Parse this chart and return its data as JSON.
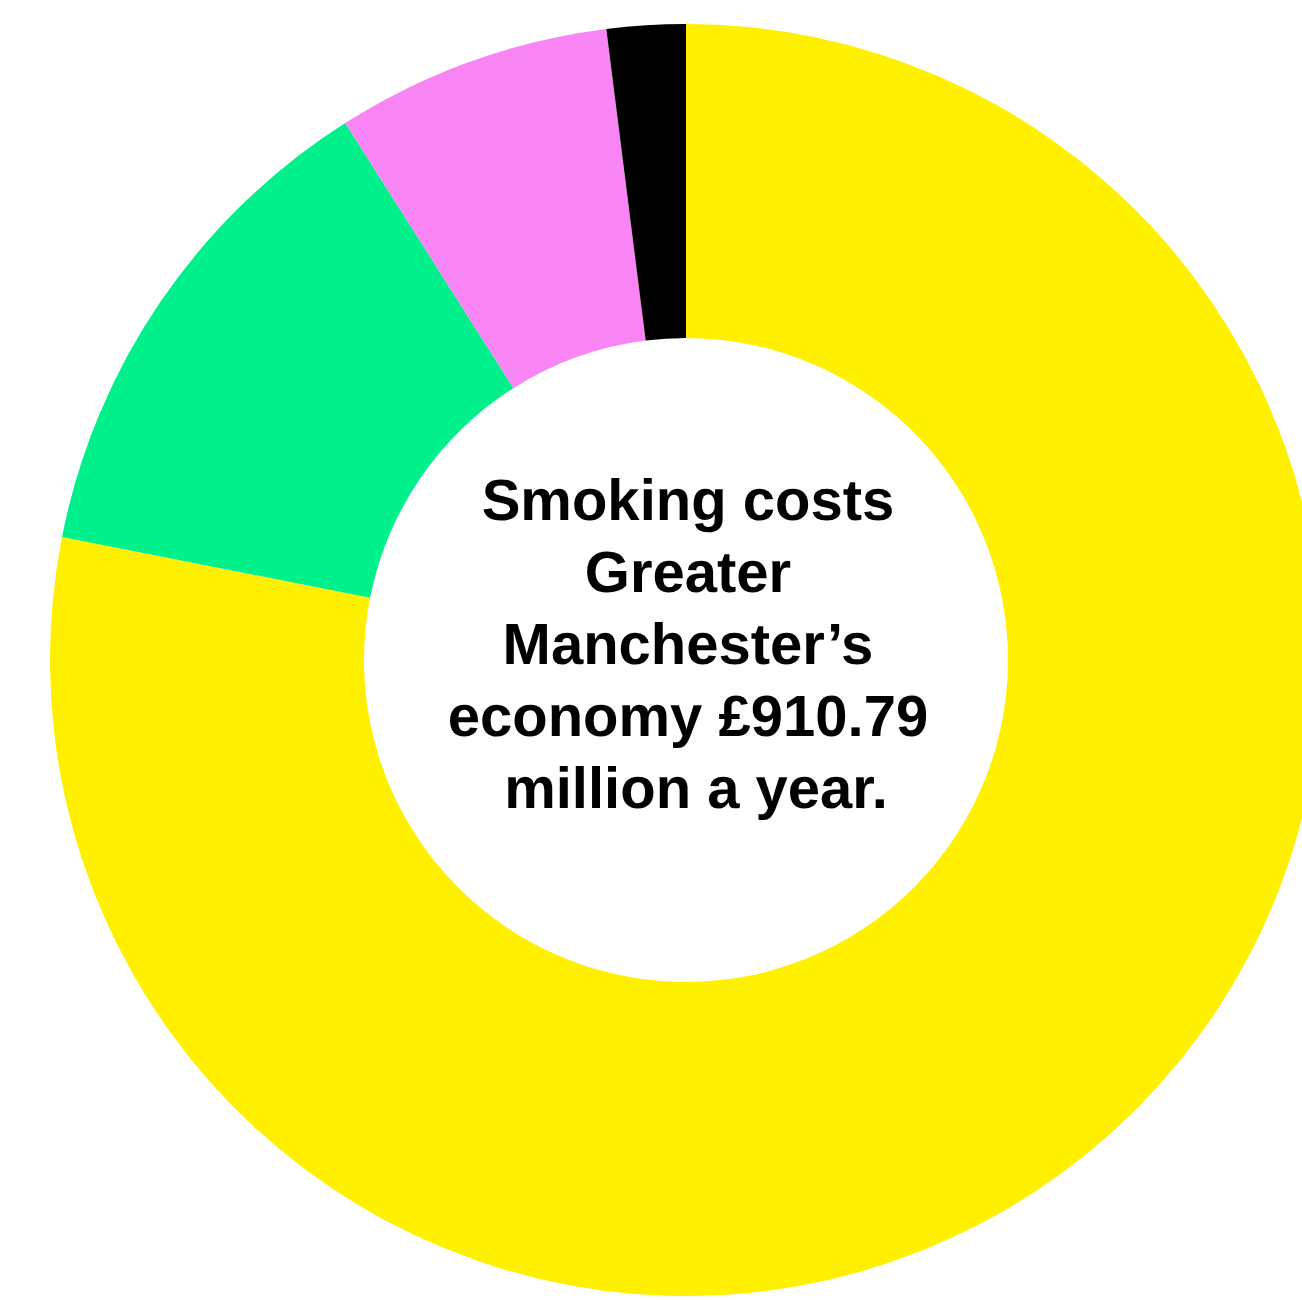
{
  "chart_data": {
    "type": "donut",
    "title": "Smoking costs Greater Manchester’s economy £910.79 million a year.",
    "categories": [
      null,
      null,
      null,
      null
    ],
    "values": [
      78.1,
      12.9,
      7,
      2
    ],
    "colors": [
      "#fff000",
      "#00f08c",
      "#f984f4",
      "#000000"
    ]
  }
}
